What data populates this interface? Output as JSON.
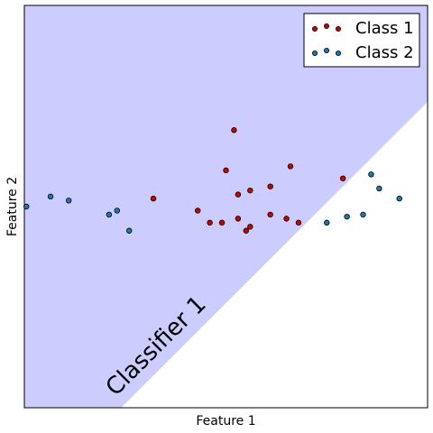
{
  "chart_data": {
    "type": "scatter",
    "title": "",
    "xlabel": "Feature 1",
    "ylabel": "Feature 2",
    "xlim": [
      0,
      10
    ],
    "ylim": [
      0,
      10
    ],
    "xticks": [],
    "yticks": [],
    "legend_position": "top-right",
    "series": [
      {
        "name": "Class 1",
        "color": "#cc0000",
        "points": [
          [
            3.2,
            5.2
          ],
          [
            4.3,
            4.9
          ],
          [
            4.6,
            4.6
          ],
          [
            4.9,
            4.6
          ],
          [
            5.0,
            5.9
          ],
          [
            5.2,
            6.9
          ],
          [
            5.3,
            4.7
          ],
          [
            5.3,
            5.3
          ],
          [
            5.5,
            4.4
          ],
          [
            5.6,
            4.5
          ],
          [
            5.6,
            5.4
          ],
          [
            6.1,
            4.8
          ],
          [
            6.1,
            5.5
          ],
          [
            6.5,
            4.7
          ],
          [
            6.6,
            6.0
          ],
          [
            6.8,
            4.6
          ],
          [
            7.9,
            5.7
          ]
        ]
      },
      {
        "name": "Class 2",
        "color": "#1f77b4",
        "points": [
          [
            0.05,
            5.0
          ],
          [
            0.65,
            5.25
          ],
          [
            1.1,
            5.15
          ],
          [
            2.1,
            4.8
          ],
          [
            2.3,
            4.9
          ],
          [
            2.6,
            4.4
          ],
          [
            7.5,
            4.6
          ],
          [
            8.0,
            4.75
          ],
          [
            8.4,
            4.8
          ],
          [
            8.6,
            5.8
          ],
          [
            8.8,
            5.45
          ],
          [
            9.3,
            5.2
          ]
        ]
      }
    ],
    "decision_region": {
      "label": "Classifier 1",
      "boundary_line": [
        [
          2.4,
          0
        ],
        [
          10,
          7.6
        ]
      ],
      "fill_color": "#ccccff",
      "side": "upper-left"
    }
  }
}
